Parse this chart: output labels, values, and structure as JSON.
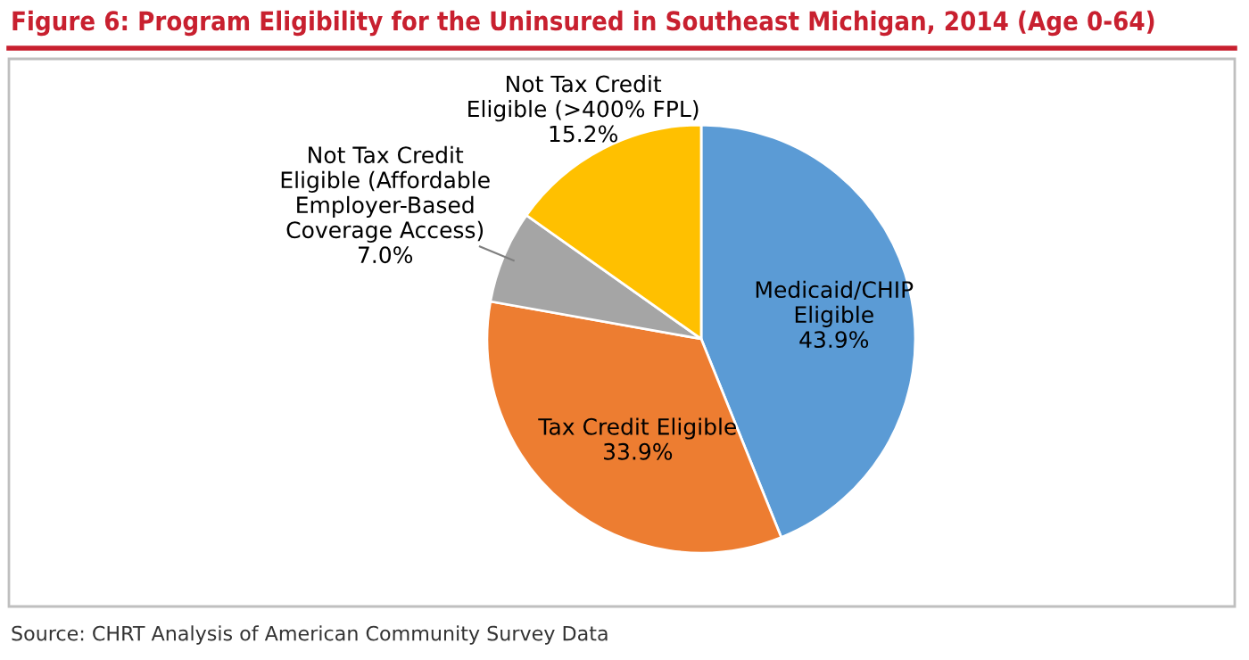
{
  "chart_data": {
    "type": "pie",
    "title": "Figure 6: Program Eligibility for the Uninsured in Southeast Michigan, 2014 (Age 0-64)",
    "categories": [
      "Medicaid/CHIP\nEligible",
      "Tax Credit Eligible",
      "Not Tax Credit\nEligible (Affordable\nEmployer-Based\nCoverage Access)",
      "Not Tax Credit\nEligible (>400% FPL)"
    ],
    "values": [
      43.9,
      33.9,
      7.0,
      15.2
    ],
    "value_labels": [
      "43.9%",
      "33.9%",
      "7.0%",
      "15.2%"
    ],
    "colors": [
      "#5b9bd5",
      "#ed7d31",
      "#a5a5a5",
      "#ffc000"
    ],
    "annotations": [
      "Source: CHRT Analysis of American Community Survey Data"
    ],
    "legend": false
  }
}
